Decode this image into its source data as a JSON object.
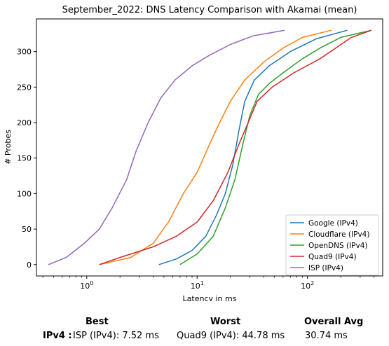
{
  "chart_data": {
    "type": "line",
    "title": "September_2022: DNS Latency Comparison with Akamai (mean)",
    "xlabel": "Latency in ms",
    "ylabel": "# Probes",
    "xscale": "log",
    "xlim": [
      0.35,
      480
    ],
    "ylim": [
      -16,
      346
    ],
    "x_ticks": [
      {
        "value": 1,
        "label": "10^0"
      },
      {
        "value": 10,
        "label": "10^1"
      },
      {
        "value": 100,
        "label": "10^2"
      }
    ],
    "y_ticks": [
      0,
      50,
      100,
      150,
      200,
      250,
      300
    ],
    "grid": false,
    "legend_position": "bottom-right",
    "series": [
      {
        "name": "Google (IPv4)",
        "color": "#1f77b4",
        "points": [
          [
            4.5,
            0
          ],
          [
            6.5,
            8
          ],
          [
            9,
            20
          ],
          [
            12,
            40
          ],
          [
            15,
            70
          ],
          [
            18,
            100
          ],
          [
            21,
            140
          ],
          [
            24,
            190
          ],
          [
            27,
            230
          ],
          [
            33,
            260
          ],
          [
            45,
            280
          ],
          [
            70,
            300
          ],
          [
            120,
            318
          ],
          [
            230,
            330
          ]
        ]
      },
      {
        "name": "Cloudflare (IPv4)",
        "color": "#ff7f0e",
        "points": [
          [
            1.3,
            0
          ],
          [
            2.5,
            10
          ],
          [
            4.0,
            30
          ],
          [
            5.5,
            60
          ],
          [
            7.5,
            100
          ],
          [
            10,
            130
          ],
          [
            13,
            170
          ],
          [
            16,
            200
          ],
          [
            20,
            230
          ],
          [
            27,
            260
          ],
          [
            40,
            285
          ],
          [
            60,
            305
          ],
          [
            90,
            320
          ],
          [
            165,
            330
          ]
        ]
      },
      {
        "name": "OpenDNS (IPv4)",
        "color": "#2ca02c",
        "points": [
          [
            7,
            0
          ],
          [
            10,
            15
          ],
          [
            14,
            40
          ],
          [
            18,
            80
          ],
          [
            22,
            120
          ],
          [
            26,
            170
          ],
          [
            30,
            210
          ],
          [
            36,
            240
          ],
          [
            45,
            255
          ],
          [
            60,
            270
          ],
          [
            90,
            290
          ],
          [
            130,
            305
          ],
          [
            200,
            320
          ],
          [
            380,
            330
          ]
        ]
      },
      {
        "name": "Quad9 (IPv4)",
        "color": "#d62728",
        "points": [
          [
            1.3,
            0
          ],
          [
            2,
            10
          ],
          [
            4,
            25
          ],
          [
            6.5,
            40
          ],
          [
            10,
            60
          ],
          [
            14,
            90
          ],
          [
            19,
            130
          ],
          [
            24,
            170
          ],
          [
            29,
            200
          ],
          [
            35,
            230
          ],
          [
            48,
            250
          ],
          [
            75,
            270
          ],
          [
            130,
            290
          ],
          [
            250,
            320
          ],
          [
            380,
            330
          ]
        ]
      },
      {
        "name": "ISP (IPv4)",
        "color": "#9467bd",
        "points": [
          [
            0.45,
            0
          ],
          [
            0.65,
            10
          ],
          [
            0.95,
            30
          ],
          [
            1.3,
            50
          ],
          [
            1.7,
            80
          ],
          [
            2.3,
            120
          ],
          [
            2.8,
            160
          ],
          [
            3.6,
            200
          ],
          [
            4.7,
            235
          ],
          [
            6.3,
            260
          ],
          [
            9,
            280
          ],
          [
            13,
            295
          ],
          [
            20,
            310
          ],
          [
            32,
            322
          ],
          [
            62,
            330
          ]
        ]
      }
    ]
  },
  "summary": {
    "col_best": "Best",
    "col_worst": "Worst",
    "col_avg": "Overall Avg",
    "row_label": "IPv4 :",
    "best": "ISP (IPv4): 7.52 ms",
    "worst": "Quad9 (IPv4): 44.78 ms",
    "avg": "30.74 ms"
  }
}
